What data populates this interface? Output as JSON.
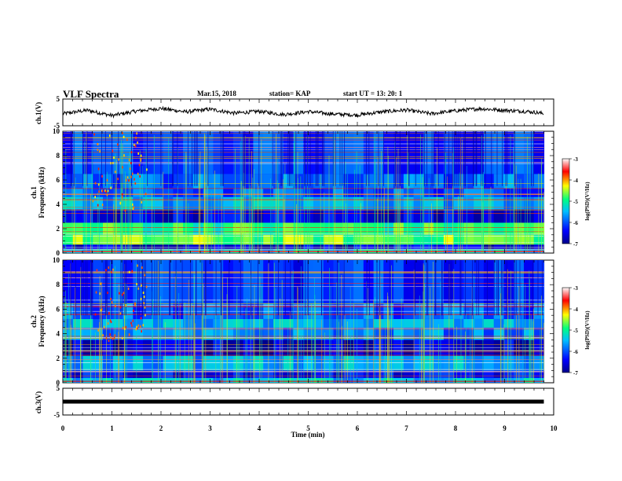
{
  "header": {
    "title": "VLF Spectra",
    "date": "Mar.15, 2018",
    "station": "station= KAP",
    "start": "start  UT =   13: 20: 1"
  },
  "chart_data": [
    {
      "type": "line",
      "panel": "ch1-waveform",
      "ylabel": "ch.1(V)",
      "ylim": [
        -5,
        5
      ],
      "yticks": [
        "5",
        "-5"
      ],
      "xlim": [
        0,
        10
      ],
      "description_series": "noisy waveform oscillating between about -2 and 2 V",
      "series": [
        {
          "x": [
            0,
            0.5,
            1,
            1.5,
            2,
            2.5,
            3,
            3.5,
            4,
            4.5,
            5,
            5.5,
            6,
            6.5,
            7,
            7.5,
            8,
            8.5,
            9,
            9.5,
            9.8
          ],
          "values": [
            -0.5,
            0.8,
            -1.2,
            0.5,
            1.5,
            0.2,
            1.2,
            -0.3,
            0.4,
            -0.8,
            0.3,
            -0.6,
            -1.0,
            0.2,
            0.9,
            -0.5,
            0.6,
            1.4,
            0.8,
            0.3,
            -0.4
          ]
        }
      ]
    },
    {
      "type": "heatmap",
      "panel": "ch1-spectrogram",
      "ylabel": "ch.1\nFrequency  (kHz)",
      "ylabel_line1": "ch.1",
      "ylabel_line2": "Frequency  (kHz)",
      "ylim": [
        0,
        10
      ],
      "yticks": [
        "0",
        "2",
        "4",
        "6",
        "8",
        "10"
      ],
      "xlim": [
        0,
        10
      ],
      "data_end_min": 9.8,
      "bands": [
        {
          "from": 0.0,
          "to": 0.3,
          "level": -5.4
        },
        {
          "from": 0.3,
          "to": 0.7,
          "level": -6.6
        },
        {
          "from": 0.7,
          "to": 1.5,
          "level": -4.7
        },
        {
          "from": 1.5,
          "to": 2.5,
          "level": -4.9
        },
        {
          "from": 2.5,
          "to": 3.6,
          "level": -6.5
        },
        {
          "from": 3.6,
          "to": 4.6,
          "level": -5.6
        },
        {
          "from": 4.6,
          "to": 5.3,
          "level": -6.0
        },
        {
          "from": 5.3,
          "to": 6.5,
          "level": -5.9
        },
        {
          "from": 6.5,
          "to": 10.0,
          "level": -6.1
        }
      ]
    },
    {
      "type": "heatmap",
      "panel": "ch2-spectrogram",
      "ylabel": "ch.2\nFrequency  (kHz)",
      "ylabel_line1": "ch.2",
      "ylabel_line2": "Frequency  (kHz)",
      "ylim": [
        0,
        10
      ],
      "yticks": [
        "0",
        "2",
        "4",
        "6",
        "8",
        "10"
      ],
      "xlim": [
        0,
        10
      ],
      "data_end_min": 9.8,
      "bands": [
        {
          "from": 0.0,
          "to": 0.4,
          "level": -5.5
        },
        {
          "from": 0.4,
          "to": 1.0,
          "level": -6.4
        },
        {
          "from": 1.0,
          "to": 2.2,
          "level": -5.6
        },
        {
          "from": 2.2,
          "to": 3.5,
          "level": -6.6
        },
        {
          "from": 3.5,
          "to": 4.5,
          "level": -5.8
        },
        {
          "from": 4.5,
          "to": 5.2,
          "level": -5.6
        },
        {
          "from": 5.2,
          "to": 6.5,
          "level": -6.0
        },
        {
          "from": 6.5,
          "to": 10.0,
          "level": -6.2
        }
      ]
    },
    {
      "type": "line",
      "panel": "ch3-waveform",
      "ylabel": "ch.3(V)",
      "ylim": [
        -5,
        5
      ],
      "yticks": [
        "5",
        "-5"
      ],
      "xlim": [
        0,
        10
      ],
      "series": [
        {
          "x": [
            0,
            9.8
          ],
          "values": [
            0,
            0
          ]
        }
      ]
    }
  ],
  "x_axis": {
    "label": "Time  (min)",
    "ticks": [
      "0",
      "1",
      "2",
      "3",
      "4",
      "5",
      "6",
      "7",
      "8",
      "9",
      "10"
    ]
  },
  "colorbars": [
    {
      "label": "log(PSD)(V²/Hz)",
      "range": [
        -7,
        -3
      ],
      "ticks": [
        "-3",
        "-4",
        "-5",
        "-6",
        "-7"
      ],
      "colors": [
        "#00008b",
        "#0000ff",
        "#00bfff",
        "#00ff80",
        "#ffff00",
        "#ff0000",
        "#ffffff"
      ]
    },
    {
      "label": "log(PSD)(V²/Hz)",
      "range": [
        -7,
        -3
      ],
      "ticks": [
        "-3",
        "-4",
        "-5",
        "-6",
        "-7"
      ],
      "colors": [
        "#00008b",
        "#0000ff",
        "#00bfff",
        "#00ff80",
        "#ffff00",
        "#ff0000",
        "#ffffff"
      ]
    }
  ]
}
